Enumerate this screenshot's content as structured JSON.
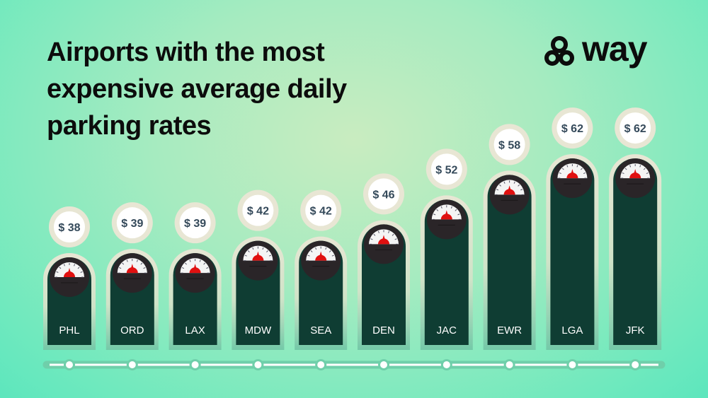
{
  "title": "Airports with the most expensive average daily parking rates",
  "brand": {
    "name": "way"
  },
  "colors": {
    "bar": "#0f3d33",
    "halo": "#e8e6d4",
    "accent": "#e01010",
    "timeline": "#6fcfaa"
  },
  "chart_data": {
    "type": "bar",
    "title": "Airports with the most expensive average daily parking rates",
    "categories": [
      "PHL",
      "ORD",
      "LAX",
      "MDW",
      "SEA",
      "DEN",
      "JAC",
      "EWR",
      "LGA",
      "JFK"
    ],
    "values": [
      38,
      39,
      39,
      42,
      42,
      46,
      52,
      58,
      62,
      62
    ],
    "value_labels": [
      "$ 38",
      "$ 39",
      "$ 39",
      "$ 42",
      "$ 42",
      "$ 46",
      "$ 52",
      "$ 58",
      "$ 62",
      "$ 62"
    ],
    "unit": "USD per day",
    "xlabel": "",
    "ylabel": ""
  }
}
